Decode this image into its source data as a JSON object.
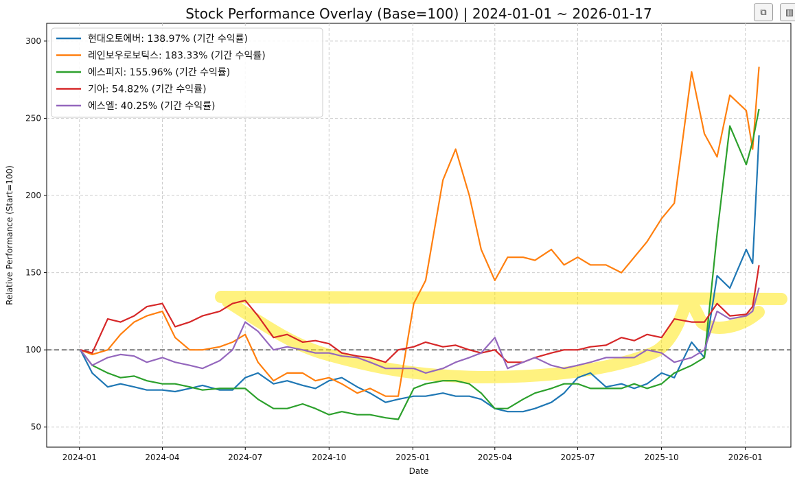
{
  "toolbar": {
    "copy_icon": "copy-icon",
    "chart_icon": "bar-chart-icon"
  },
  "chart_data": {
    "type": "line",
    "title": "Stock Performance Overlay (Base=100) | 2024-01-01 ~ 2026-01-17",
    "xlabel": "Date",
    "ylabel": "Relative Performance (Start=100)",
    "ylim": [
      37,
      311.5
    ],
    "xlim": [
      "2023-11-26",
      "2026-02-20"
    ],
    "yticks": [
      50,
      100,
      150,
      200,
      250,
      300
    ],
    "xticks": [
      "2024-01",
      "2024-04",
      "2024-07",
      "2024-10",
      "2025-01",
      "2025-04",
      "2025-07",
      "2025-10",
      "2026-01"
    ],
    "grid": true,
    "legend_position": "top-left",
    "baseline": 100,
    "x": [
      "2024-01-02",
      "2024-01-15",
      "2024-02-01",
      "2024-02-15",
      "2024-03-01",
      "2024-03-15",
      "2024-04-01",
      "2024-04-15",
      "2024-05-01",
      "2024-05-15",
      "2024-06-03",
      "2024-06-17",
      "2024-07-01",
      "2024-07-15",
      "2024-08-01",
      "2024-08-16",
      "2024-09-02",
      "2024-09-16",
      "2024-10-01",
      "2024-10-15",
      "2024-11-01",
      "2024-11-15",
      "2024-12-02",
      "2024-12-16",
      "2025-01-02",
      "2025-01-15",
      "2025-02-03",
      "2025-02-17",
      "2025-03-04",
      "2025-03-17",
      "2025-04-01",
      "2025-04-15",
      "2025-05-02",
      "2025-05-15",
      "2025-06-02",
      "2025-06-16",
      "2025-07-01",
      "2025-07-15",
      "2025-08-01",
      "2025-08-18",
      "2025-09-01",
      "2025-09-15",
      "2025-10-01",
      "2025-10-15",
      "2025-11-03",
      "2025-11-17",
      "2025-12-01",
      "2025-12-15",
      "2026-01-02",
      "2026-01-09",
      "2026-01-16"
    ],
    "series": [
      {
        "name": "현대오토에버: 138.97% (기간 수익률)",
        "color": "#1f77b4",
        "values": [
          100,
          85,
          76,
          78,
          76,
          74,
          74,
          73,
          75,
          77,
          74,
          74,
          82,
          85,
          78,
          80,
          77,
          75,
          80,
          82,
          76,
          72,
          66,
          68,
          70,
          70,
          72,
          70,
          70,
          68,
          62,
          60,
          60,
          62,
          66,
          72,
          82,
          85,
          76,
          78,
          75,
          78,
          85,
          82,
          105,
          95,
          148,
          140,
          165,
          156,
          238.97
        ]
      },
      {
        "name": "레인보우로보틱스: 183.33% (기간 수익률)",
        "color": "#ff7f0e",
        "values": [
          100,
          97,
          100,
          110,
          118,
          122,
          125,
          108,
          100,
          100,
          102,
          105,
          110,
          92,
          80,
          85,
          85,
          80,
          82,
          78,
          72,
          75,
          70,
          70,
          130,
          145,
          210,
          230,
          200,
          165,
          145,
          160,
          160,
          158,
          165,
          155,
          160,
          155,
          155,
          150,
          160,
          170,
          185,
          195,
          280,
          240,
          225,
          265,
          255,
          230,
          283.33
        ]
      },
      {
        "name": "에스피지: 155.96% (기간 수익률)",
        "color": "#2ca02c",
        "values": [
          100,
          90,
          85,
          82,
          83,
          80,
          78,
          78,
          76,
          74,
          75,
          75,
          75,
          68,
          62,
          62,
          65,
          62,
          58,
          60,
          58,
          58,
          56,
          55,
          75,
          78,
          80,
          80,
          78,
          72,
          62,
          62,
          68,
          72,
          75,
          78,
          78,
          75,
          75,
          75,
          78,
          75,
          78,
          85,
          90,
          95,
          175,
          245,
          220,
          235,
          255.96
        ]
      },
      {
        "name": "기아: 54.82% (기간 수익률)",
        "color": "#d62728",
        "values": [
          100,
          98,
          120,
          118,
          122,
          128,
          130,
          115,
          118,
          122,
          125,
          130,
          132,
          122,
          108,
          110,
          105,
          106,
          104,
          98,
          96,
          95,
          92,
          100,
          102,
          105,
          102,
          103,
          100,
          98,
          100,
          92,
          92,
          95,
          98,
          100,
          100,
          102,
          103,
          108,
          106,
          110,
          108,
          120,
          118,
          118,
          130,
          122,
          123,
          128,
          154.82
        ]
      },
      {
        "name": "에스엘: 40.25% (기간 수익률)",
        "color": "#9467bd",
        "values": [
          100,
          90,
          95,
          97,
          96,
          92,
          95,
          92,
          90,
          88,
          93,
          100,
          118,
          112,
          100,
          102,
          100,
          98,
          98,
          96,
          95,
          92,
          88,
          88,
          88,
          85,
          88,
          92,
          95,
          98,
          108,
          88,
          92,
          95,
          90,
          88,
          90,
          92,
          95,
          95,
          95,
          100,
          98,
          92,
          95,
          100,
          125,
          120,
          122,
          125,
          140.25
        ]
      }
    ]
  }
}
